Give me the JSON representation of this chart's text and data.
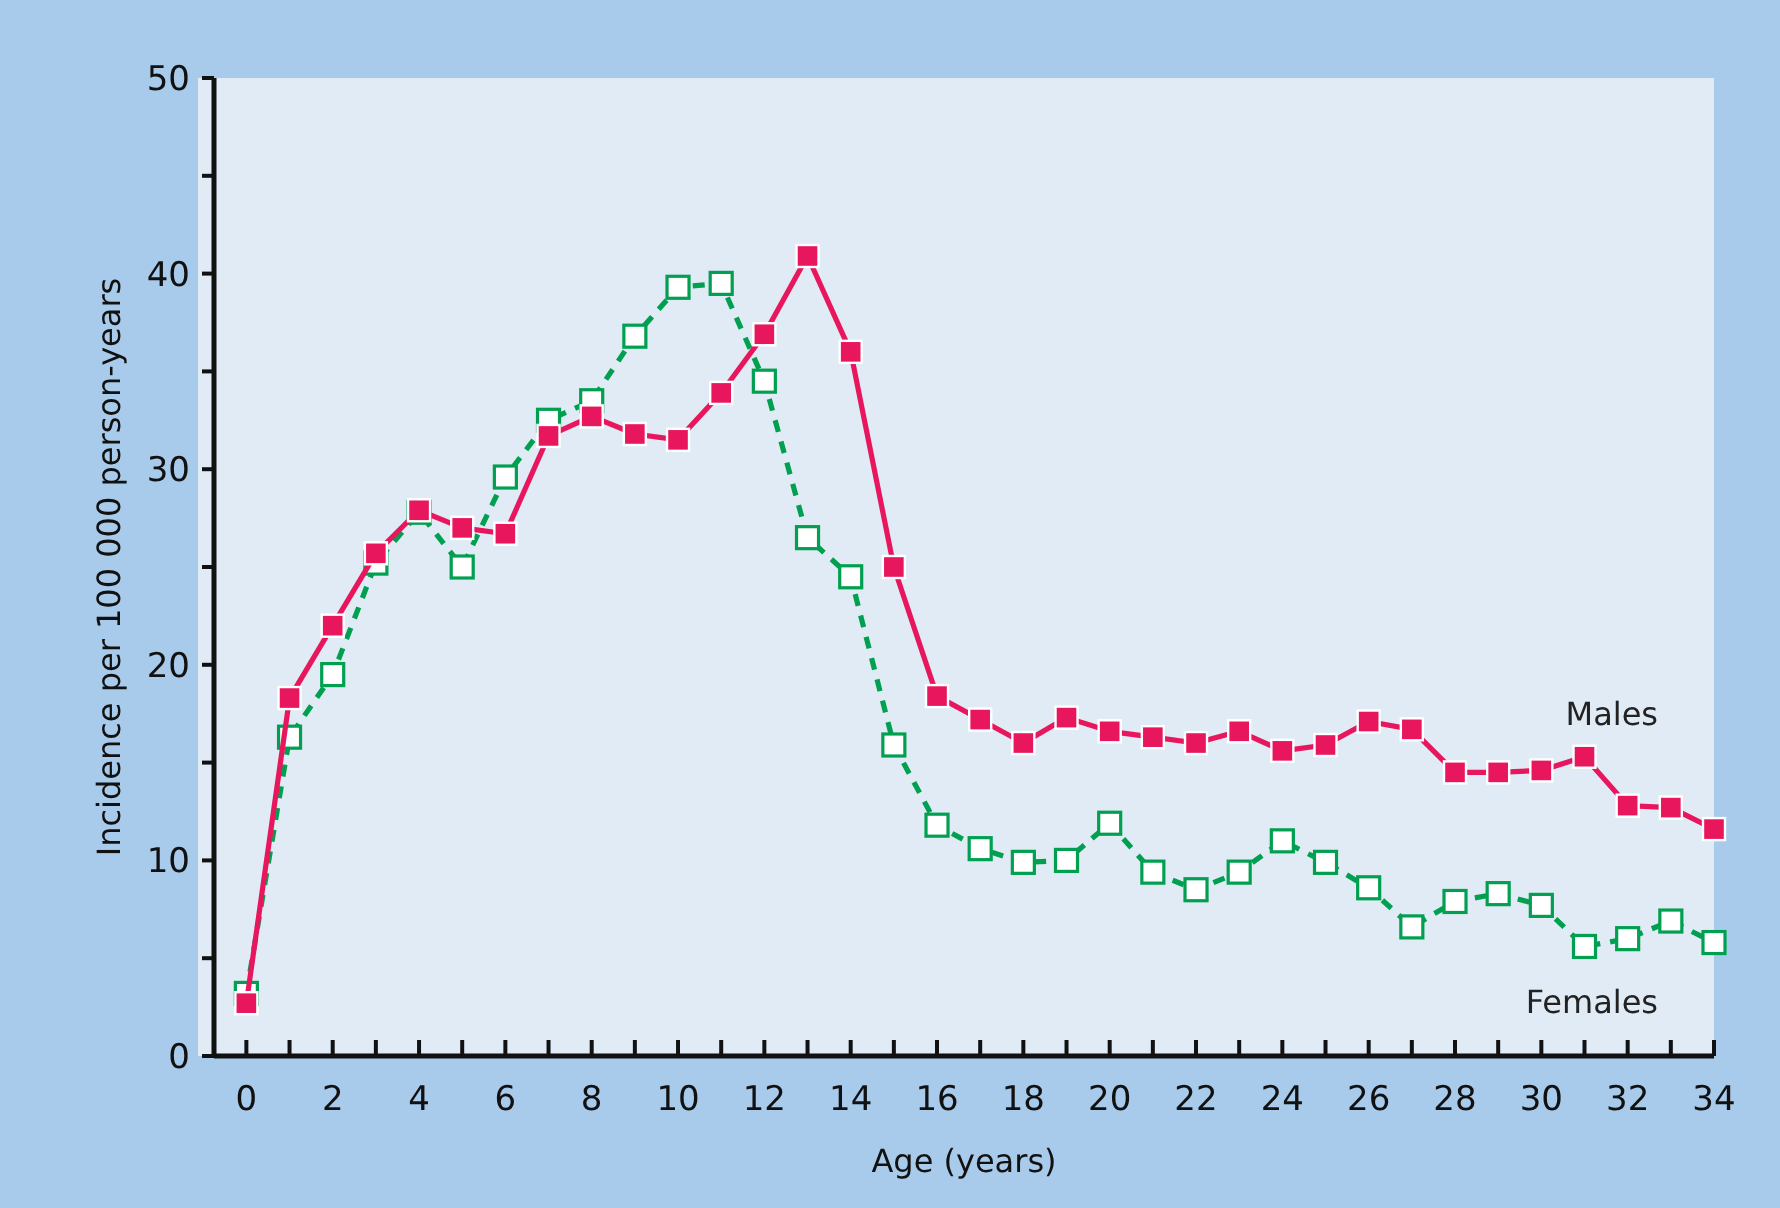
{
  "chart_data": {
    "type": "line",
    "xlabel": "Age (years)",
    "ylabel": "Incidence per 100 000 person-years",
    "x": [
      0,
      1,
      2,
      3,
      4,
      5,
      6,
      7,
      8,
      9,
      10,
      11,
      12,
      13,
      14,
      15,
      16,
      17,
      18,
      19,
      20,
      21,
      22,
      23,
      24,
      25,
      26,
      27,
      28,
      29,
      30,
      31,
      32,
      33,
      34
    ],
    "series": [
      {
        "name": "Males",
        "color": "#e8175d",
        "marker": "square",
        "line_style": "solid",
        "values": [
          2.7,
          18.3,
          22,
          25.7,
          27.9,
          27,
          26.7,
          31.7,
          32.7,
          31.8,
          31.5,
          33.9,
          36.9,
          40.9,
          36,
          25,
          18.4,
          17.2,
          16,
          17.3,
          16.6,
          16.3,
          16,
          16.6,
          15.6,
          15.9,
          17.1,
          16.7,
          14.5,
          14.5,
          14.6,
          15.3,
          12.8,
          12.7,
          11.6
        ]
      },
      {
        "name": "Females",
        "color": "#00a050",
        "marker": "square",
        "line_style": "dashed",
        "values": [
          3.2,
          16.3,
          19.5,
          25.2,
          27.8,
          25,
          29.6,
          32.5,
          33.5,
          36.8,
          39.3,
          39.5,
          34.5,
          26.5,
          24.5,
          15.9,
          11.8,
          10.6,
          9.9,
          10,
          11.9,
          9.4,
          8.5,
          9.4,
          11,
          9.9,
          8.6,
          6.6,
          7.9,
          8.3,
          7.7,
          5.6,
          6,
          6.9,
          5.8
        ]
      }
    ],
    "xlim": [
      -0.75,
      34
    ],
    "xticks": [
      0,
      {
        "value": 1,
        "label": null
      },
      2,
      {
        "value": 3,
        "label": null
      },
      4,
      {
        "value": 5,
        "label": null
      },
      6,
      {
        "value": 7,
        "label": null
      },
      8,
      {
        "value": 9,
        "label": null
      },
      10,
      {
        "value": 11,
        "label": null
      },
      12,
      {
        "value": 13,
        "label": null
      },
      14,
      {
        "value": 15,
        "label": null
      },
      16,
      {
        "value": 17,
        "label": null
      },
      18,
      {
        "value": 19,
        "label": null
      },
      20,
      {
        "value": 21,
        "label": null
      },
      22,
      {
        "value": 23,
        "label": null
      },
      24,
      {
        "value": 25,
        "label": null
      },
      26,
      {
        "value": 27,
        "label": null
      },
      28,
      {
        "value": 29,
        "label": null
      },
      30,
      {
        "value": 31,
        "label": null
      },
      32,
      {
        "value": 33,
        "label": null
      },
      34
    ],
    "ylim": [
      0,
      50
    ],
    "yticks": [
      0,
      {
        "value": 5,
        "label": null
      },
      10,
      {
        "value": 15,
        "label": null
      },
      20,
      {
        "value": 25,
        "label": null
      },
      30,
      {
        "value": 35,
        "label": null
      },
      40,
      {
        "value": 45,
        "label": null
      },
      50
    ],
    "grid": false
  }
}
